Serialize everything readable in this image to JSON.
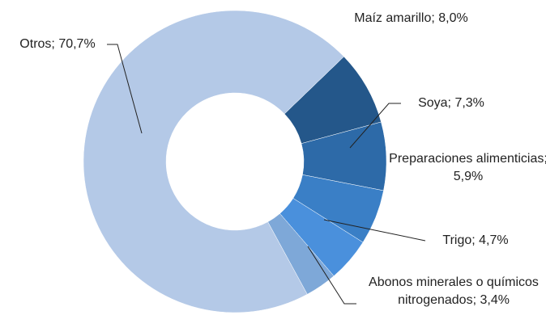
{
  "chart_data": {
    "type": "donut",
    "categories": [
      "Maíz amarillo",
      "Soya",
      "Preparaciones alimenticias",
      "Trigo",
      "Abonos minerales o químicos nitrogenados",
      "Otros"
    ],
    "values": [
      8.0,
      7.3,
      5.9,
      4.7,
      3.4,
      70.7
    ],
    "value_labels": [
      "8,0%",
      "7,3%",
      "5,9%",
      "4,7%",
      "3,4%",
      "70,7%"
    ],
    "colors": [
      "#24578a",
      "#2d6aa8",
      "#3a7fc6",
      "#4a90dc",
      "#7ea8d8",
      "#b4c9e7"
    ]
  }
}
